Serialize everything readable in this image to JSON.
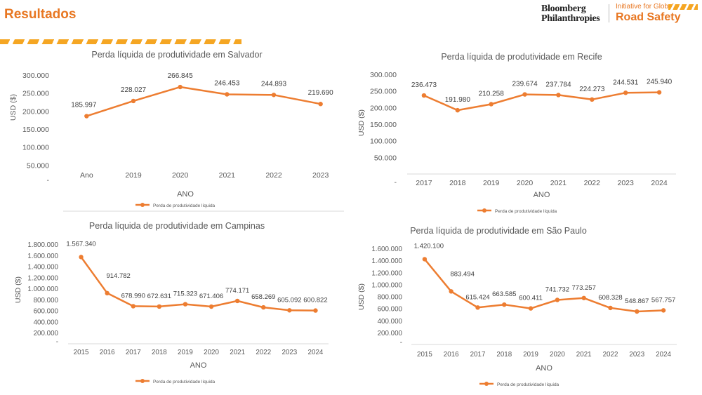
{
  "header": {
    "title": "Resultados",
    "logo_line1": "Bloomberg",
    "logo_line2": "Philanthropies",
    "initiative_line1": "Initiative for Global",
    "initiative_line2": "Road Safety"
  },
  "colors": {
    "series": "#ed7d31",
    "accent": "#e87722",
    "axis_text": "#595959"
  },
  "chart_data": [
    {
      "type": "line",
      "title": "Perda líquida de produtividade em Salvador",
      "xlabel": "ANO",
      "ylabel": "USD ($)",
      "categories": [
        "Ano",
        "2019",
        "2020",
        "2021",
        "2022",
        "2023"
      ],
      "yticks": [
        "300.000",
        "250.000",
        "200.000",
        "150.000",
        "100.000",
        "50.000",
        "-"
      ],
      "ylim": [
        0,
        300000
      ],
      "series": [
        {
          "name": "Perda de produtividade líquida",
          "values": [
            185997,
            228027,
            266845,
            246453,
            244893,
            219690
          ],
          "labels": [
            "185.997",
            "228.027",
            "266.845",
            "246.453",
            "244.893",
            "219.690"
          ]
        }
      ],
      "legend": "bottom"
    },
    {
      "type": "line",
      "title": "Perda líquida de produtividade em Recife",
      "xlabel": "ANO",
      "ylabel": "USD ($)",
      "categories": [
        "2017",
        "2018",
        "2019",
        "2020",
        "2021",
        "2022",
        "2023",
        "2024"
      ],
      "yticks": [
        "300.000",
        "250.000",
        "200.000",
        "150.000",
        "100.000",
        "50.000",
        "-"
      ],
      "ylim": [
        0,
        300000
      ],
      "series": [
        {
          "name": "Perda de produtividade líquida",
          "values": [
            236473,
            191980,
            210258,
            239674,
            237784,
            224273,
            244531,
            245940
          ],
          "labels": [
            "236.473",
            "191.980",
            "210.258",
            "239.674",
            "237.784",
            "224.273",
            "244.531",
            "245.940"
          ]
        }
      ],
      "legend": "bottom"
    },
    {
      "type": "line",
      "title": "Perda líquida de produtividade em Campinas",
      "xlabel": "ANO",
      "ylabel": "USD ($)",
      "categories": [
        "2015",
        "2016",
        "2017",
        "2018",
        "2019",
        "2020",
        "2021",
        "2022",
        "2023",
        "2024"
      ],
      "yticks": [
        "1.800.000",
        "1.600.000",
        "1.400.000",
        "1.200.000",
        "1.000.000",
        "800.000",
        "600.000",
        "400.000",
        "200.000",
        "-"
      ],
      "ylim": [
        0,
        1800000
      ],
      "series": [
        {
          "name": "Perda de produtividade líquida",
          "values": [
            1567340,
            914782,
            678990,
            672631,
            715323,
            671406,
            774171,
            658269,
            605092,
            600822
          ],
          "labels": [
            "1.567.340",
            "914.782",
            "678.990",
            "672.631",
            "715.323",
            "671.406",
            "774.171",
            "658.269",
            "605.092",
            "600.822"
          ]
        }
      ],
      "legend": "bottom"
    },
    {
      "type": "line",
      "title": "Perda líquida de produtividade em São Paulo",
      "xlabel": "ANO",
      "ylabel": "USD ($)",
      "categories": [
        "2015",
        "2016",
        "2017",
        "2018",
        "2019",
        "2020",
        "2021",
        "2022",
        "2023",
        "2024"
      ],
      "yticks": [
        "1.600.000",
        "1.400.000",
        "1.200.000",
        "1.000.000",
        "800.000",
        "600.000",
        "400.000",
        "200.000",
        "-"
      ],
      "ylim": [
        0,
        1600000
      ],
      "series": [
        {
          "name": "Perda de produtividade líquida",
          "values": [
            1420100,
            883494,
            615424,
            663585,
            600411,
            741732,
            773257,
            608328,
            548867,
            567757
          ],
          "labels": [
            "1.420.100",
            "883.494",
            "615.424",
            "663.585",
            "600.411",
            "741.732",
            "773.257",
            "608.328",
            "548.867",
            "567.757"
          ]
        }
      ],
      "legend": "bottom"
    }
  ]
}
